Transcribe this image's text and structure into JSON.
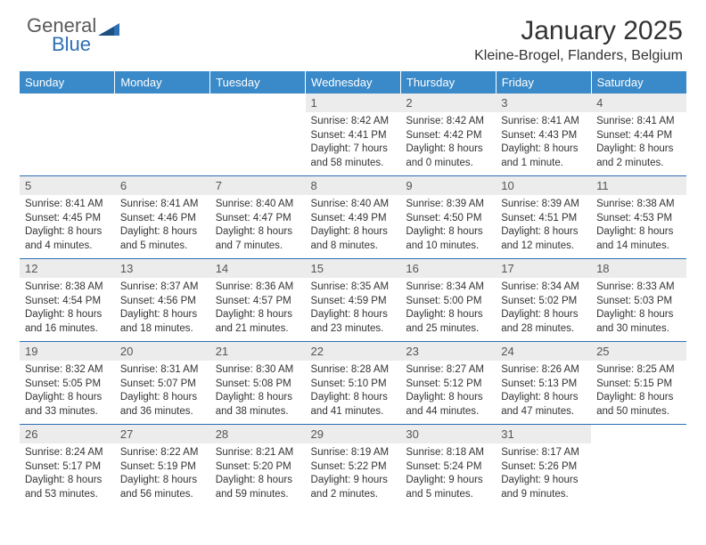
{
  "logo": {
    "line1": "General",
    "line2": "Blue"
  },
  "colors": {
    "header_bg": "#3a8ac9",
    "header_fg": "#ffffff",
    "row_border": "#2e6fb5",
    "daynum_bg": "#ececec",
    "daynum_fg": "#555555",
    "body_fg": "#333333",
    "logo_gray": "#5a5a5a",
    "logo_blue": "#2e6fb5"
  },
  "title": "January 2025",
  "location": "Kleine-Brogel, Flanders, Belgium",
  "weekdays": [
    "Sunday",
    "Monday",
    "Tuesday",
    "Wednesday",
    "Thursday",
    "Friday",
    "Saturday"
  ],
  "weeks": [
    [
      {
        "empty": true
      },
      {
        "empty": true
      },
      {
        "empty": true
      },
      {
        "day": "1",
        "sunrise": "Sunrise: 8:42 AM",
        "sunset": "Sunset: 4:41 PM",
        "daylight1": "Daylight: 7 hours",
        "daylight2": "and 58 minutes."
      },
      {
        "day": "2",
        "sunrise": "Sunrise: 8:42 AM",
        "sunset": "Sunset: 4:42 PM",
        "daylight1": "Daylight: 8 hours",
        "daylight2": "and 0 minutes."
      },
      {
        "day": "3",
        "sunrise": "Sunrise: 8:41 AM",
        "sunset": "Sunset: 4:43 PM",
        "daylight1": "Daylight: 8 hours",
        "daylight2": "and 1 minute."
      },
      {
        "day": "4",
        "sunrise": "Sunrise: 8:41 AM",
        "sunset": "Sunset: 4:44 PM",
        "daylight1": "Daylight: 8 hours",
        "daylight2": "and 2 minutes."
      }
    ],
    [
      {
        "day": "5",
        "sunrise": "Sunrise: 8:41 AM",
        "sunset": "Sunset: 4:45 PM",
        "daylight1": "Daylight: 8 hours",
        "daylight2": "and 4 minutes."
      },
      {
        "day": "6",
        "sunrise": "Sunrise: 8:41 AM",
        "sunset": "Sunset: 4:46 PM",
        "daylight1": "Daylight: 8 hours",
        "daylight2": "and 5 minutes."
      },
      {
        "day": "7",
        "sunrise": "Sunrise: 8:40 AM",
        "sunset": "Sunset: 4:47 PM",
        "daylight1": "Daylight: 8 hours",
        "daylight2": "and 7 minutes."
      },
      {
        "day": "8",
        "sunrise": "Sunrise: 8:40 AM",
        "sunset": "Sunset: 4:49 PM",
        "daylight1": "Daylight: 8 hours",
        "daylight2": "and 8 minutes."
      },
      {
        "day": "9",
        "sunrise": "Sunrise: 8:39 AM",
        "sunset": "Sunset: 4:50 PM",
        "daylight1": "Daylight: 8 hours",
        "daylight2": "and 10 minutes."
      },
      {
        "day": "10",
        "sunrise": "Sunrise: 8:39 AM",
        "sunset": "Sunset: 4:51 PM",
        "daylight1": "Daylight: 8 hours",
        "daylight2": "and 12 minutes."
      },
      {
        "day": "11",
        "sunrise": "Sunrise: 8:38 AM",
        "sunset": "Sunset: 4:53 PM",
        "daylight1": "Daylight: 8 hours",
        "daylight2": "and 14 minutes."
      }
    ],
    [
      {
        "day": "12",
        "sunrise": "Sunrise: 8:38 AM",
        "sunset": "Sunset: 4:54 PM",
        "daylight1": "Daylight: 8 hours",
        "daylight2": "and 16 minutes."
      },
      {
        "day": "13",
        "sunrise": "Sunrise: 8:37 AM",
        "sunset": "Sunset: 4:56 PM",
        "daylight1": "Daylight: 8 hours",
        "daylight2": "and 18 minutes."
      },
      {
        "day": "14",
        "sunrise": "Sunrise: 8:36 AM",
        "sunset": "Sunset: 4:57 PM",
        "daylight1": "Daylight: 8 hours",
        "daylight2": "and 21 minutes."
      },
      {
        "day": "15",
        "sunrise": "Sunrise: 8:35 AM",
        "sunset": "Sunset: 4:59 PM",
        "daylight1": "Daylight: 8 hours",
        "daylight2": "and 23 minutes."
      },
      {
        "day": "16",
        "sunrise": "Sunrise: 8:34 AM",
        "sunset": "Sunset: 5:00 PM",
        "daylight1": "Daylight: 8 hours",
        "daylight2": "and 25 minutes."
      },
      {
        "day": "17",
        "sunrise": "Sunrise: 8:34 AM",
        "sunset": "Sunset: 5:02 PM",
        "daylight1": "Daylight: 8 hours",
        "daylight2": "and 28 minutes."
      },
      {
        "day": "18",
        "sunrise": "Sunrise: 8:33 AM",
        "sunset": "Sunset: 5:03 PM",
        "daylight1": "Daylight: 8 hours",
        "daylight2": "and 30 minutes."
      }
    ],
    [
      {
        "day": "19",
        "sunrise": "Sunrise: 8:32 AM",
        "sunset": "Sunset: 5:05 PM",
        "daylight1": "Daylight: 8 hours",
        "daylight2": "and 33 minutes."
      },
      {
        "day": "20",
        "sunrise": "Sunrise: 8:31 AM",
        "sunset": "Sunset: 5:07 PM",
        "daylight1": "Daylight: 8 hours",
        "daylight2": "and 36 minutes."
      },
      {
        "day": "21",
        "sunrise": "Sunrise: 8:30 AM",
        "sunset": "Sunset: 5:08 PM",
        "daylight1": "Daylight: 8 hours",
        "daylight2": "and 38 minutes."
      },
      {
        "day": "22",
        "sunrise": "Sunrise: 8:28 AM",
        "sunset": "Sunset: 5:10 PM",
        "daylight1": "Daylight: 8 hours",
        "daylight2": "and 41 minutes."
      },
      {
        "day": "23",
        "sunrise": "Sunrise: 8:27 AM",
        "sunset": "Sunset: 5:12 PM",
        "daylight1": "Daylight: 8 hours",
        "daylight2": "and 44 minutes."
      },
      {
        "day": "24",
        "sunrise": "Sunrise: 8:26 AM",
        "sunset": "Sunset: 5:13 PM",
        "daylight1": "Daylight: 8 hours",
        "daylight2": "and 47 minutes."
      },
      {
        "day": "25",
        "sunrise": "Sunrise: 8:25 AM",
        "sunset": "Sunset: 5:15 PM",
        "daylight1": "Daylight: 8 hours",
        "daylight2": "and 50 minutes."
      }
    ],
    [
      {
        "day": "26",
        "sunrise": "Sunrise: 8:24 AM",
        "sunset": "Sunset: 5:17 PM",
        "daylight1": "Daylight: 8 hours",
        "daylight2": "and 53 minutes."
      },
      {
        "day": "27",
        "sunrise": "Sunrise: 8:22 AM",
        "sunset": "Sunset: 5:19 PM",
        "daylight1": "Daylight: 8 hours",
        "daylight2": "and 56 minutes."
      },
      {
        "day": "28",
        "sunrise": "Sunrise: 8:21 AM",
        "sunset": "Sunset: 5:20 PM",
        "daylight1": "Daylight: 8 hours",
        "daylight2": "and 59 minutes."
      },
      {
        "day": "29",
        "sunrise": "Sunrise: 8:19 AM",
        "sunset": "Sunset: 5:22 PM",
        "daylight1": "Daylight: 9 hours",
        "daylight2": "and 2 minutes."
      },
      {
        "day": "30",
        "sunrise": "Sunrise: 8:18 AM",
        "sunset": "Sunset: 5:24 PM",
        "daylight1": "Daylight: 9 hours",
        "daylight2": "and 5 minutes."
      },
      {
        "day": "31",
        "sunrise": "Sunrise: 8:17 AM",
        "sunset": "Sunset: 5:26 PM",
        "daylight1": "Daylight: 9 hours",
        "daylight2": "and 9 minutes."
      },
      {
        "empty": true
      }
    ]
  ]
}
